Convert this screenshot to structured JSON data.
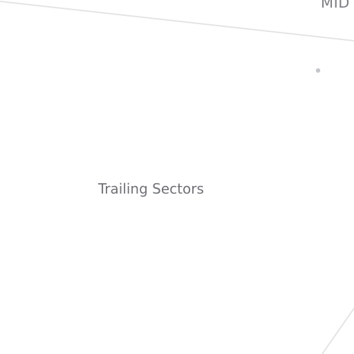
{
  "diagram": {
    "labels": {
      "mid": "MID",
      "trailing_sectors": "Trailing Sectors"
    },
    "colors": {
      "background": "#ffffff",
      "line": "#e4e4e4",
      "dot": "#c4c6cb",
      "label_text": "#707277"
    }
  }
}
